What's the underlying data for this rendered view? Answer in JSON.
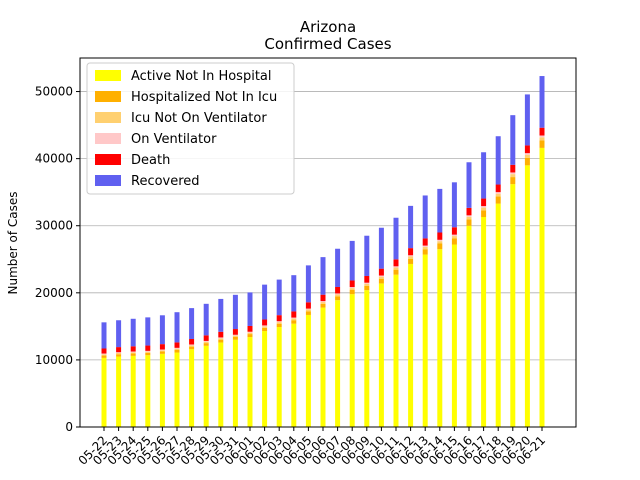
{
  "chart_data": {
    "type": "bar",
    "stacked": true,
    "title": "Arizona",
    "subtitle": "Confirmed Cases",
    "xlabel": "",
    "ylabel": "Number of Cases",
    "ylim": [
      0,
      55000
    ],
    "yticks": [
      0,
      10000,
      20000,
      30000,
      40000,
      50000
    ],
    "grid": "y",
    "legend_position": "top-left",
    "categories": [
      "05-22",
      "05-23",
      "05-24",
      "05-25",
      "05-26",
      "05-27",
      "05-28",
      "05-29",
      "05-30",
      "05-31",
      "06-01",
      "06-02",
      "06-03",
      "06-04",
      "06-05",
      "06-06",
      "06-07",
      "06-08",
      "06-09",
      "06-10",
      "06-11",
      "06-12",
      "06-13",
      "06-14",
      "06-15",
      "06-16",
      "06-17",
      "06-18",
      "06-19",
      "06-20",
      "06-21"
    ],
    "series": [
      {
        "name": "Active Not In Hospital",
        "color": "#ffff00",
        "values": [
          10300,
          10500,
          10600,
          10700,
          10900,
          11100,
          11600,
          12100,
          12600,
          13000,
          13400,
          14300,
          14900,
          15400,
          16700,
          17800,
          18900,
          19800,
          20400,
          21400,
          22700,
          24300,
          25700,
          26500,
          27200,
          30000,
          31300,
          33300,
          36200,
          39000,
          41600
        ]
      },
      {
        "name": "Hospitalized Not In Icu",
        "color": "#ffb000",
        "values": [
          350,
          350,
          350,
          350,
          350,
          380,
          380,
          400,
          420,
          420,
          450,
          480,
          500,
          520,
          550,
          560,
          580,
          620,
          650,
          700,
          750,
          780,
          800,
          850,
          900,
          950,
          1000,
          1050,
          1050,
          1100,
          1100
        ]
      },
      {
        "name": "Icu Not On Ventilator",
        "color": "#ffd070",
        "values": [
          180,
          180,
          180,
          180,
          180,
          190,
          190,
          200,
          200,
          200,
          210,
          220,
          230,
          240,
          250,
          260,
          270,
          280,
          290,
          300,
          320,
          330,
          340,
          350,
          360,
          380,
          400,
          420,
          440,
          460,
          480
        ]
      },
      {
        "name": "On Ventilator",
        "color": "#ffc8c8",
        "values": [
          120,
          120,
          120,
          120,
          120,
          130,
          130,
          130,
          130,
          130,
          140,
          140,
          140,
          150,
          150,
          150,
          160,
          160,
          170,
          180,
          180,
          190,
          200,
          200,
          210,
          220,
          230,
          240,
          250,
          260,
          270
        ]
      },
      {
        "name": "Death",
        "color": "#ff0000",
        "values": [
          750,
          760,
          780,
          790,
          800,
          810,
          820,
          830,
          840,
          850,
          860,
          880,
          900,
          920,
          940,
          950,
          960,
          980,
          1000,
          1020,
          1040,
          1060,
          1070,
          1090,
          1100,
          1110,
          1120,
          1130,
          1140,
          1150,
          1160
        ]
      },
      {
        "name": "Recovered",
        "color": "#6060f0",
        "values": [
          3900,
          4000,
          4100,
          4200,
          4300,
          4500,
          4600,
          4700,
          4900,
          5100,
          5000,
          5200,
          5300,
          5400,
          5500,
          5600,
          5700,
          5900,
          6000,
          6100,
          6200,
          6300,
          6400,
          6500,
          6700,
          6800,
          6900,
          7200,
          7400,
          7600,
          7700
        ]
      }
    ]
  }
}
